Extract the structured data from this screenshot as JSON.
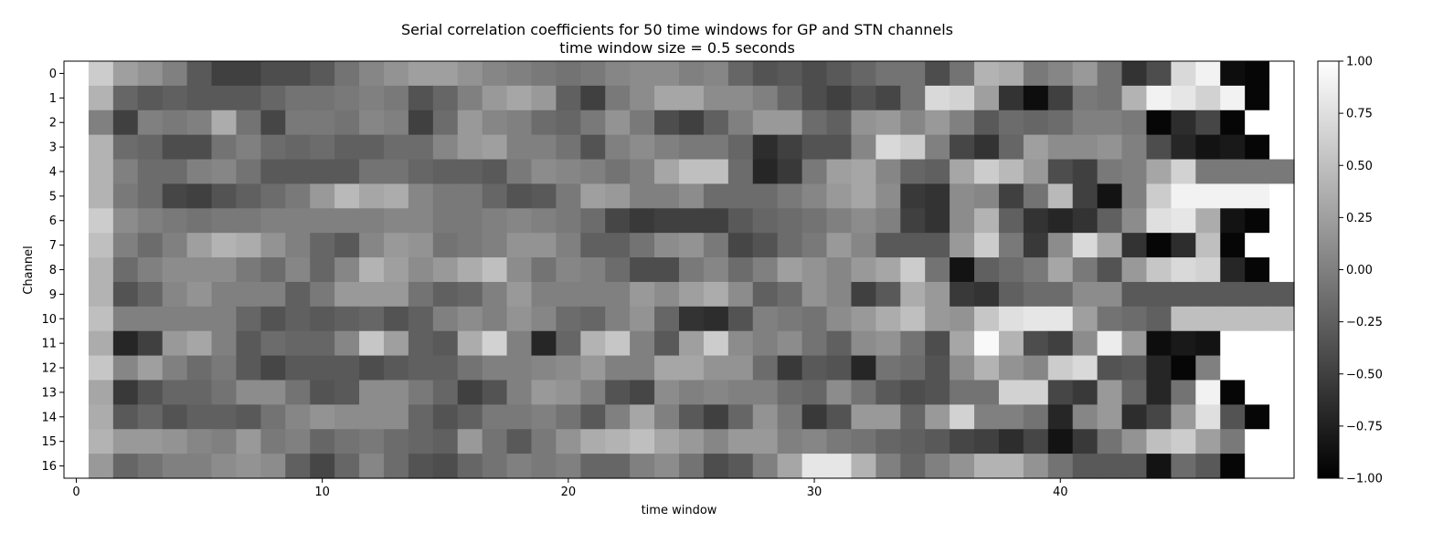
{
  "chart_data": {
    "type": "heatmap",
    "title": "Serial correlation coefficients for 50 time windows for GP and STN channels",
    "subtitle": "time window size = 0.5 seconds",
    "xlabel": "time window",
    "ylabel": "Channel",
    "colormap": "gray",
    "colormap_colors": [
      "#000000",
      "#ffffff"
    ],
    "x_range": [
      -0.5,
      49.5
    ],
    "x_ticks": [
      0,
      10,
      20,
      30,
      40
    ],
    "y_ticks": [
      0,
      1,
      2,
      3,
      4,
      5,
      6,
      7,
      8,
      9,
      10,
      11,
      12,
      13,
      14,
      15,
      16
    ],
    "color_range": [
      -1.0,
      1.0
    ],
    "colorbar_ticks": [
      "1.00",
      "0.75",
      "0.50",
      "0.25",
      "0.00",
      "−0.25",
      "−0.50",
      "−0.75",
      "−1.00"
    ],
    "channels": [
      0,
      1,
      2,
      3,
      4,
      5,
      6,
      7,
      8,
      9,
      10,
      11,
      12,
      13,
      14,
      15,
      16
    ],
    "values": [
      [
        1.0,
        0.6,
        0.25,
        0.15,
        0.0,
        -0.3,
        -0.5,
        -0.5,
        -0.4,
        -0.4,
        -0.3,
        -0.1,
        0.05,
        0.15,
        0.25,
        0.25,
        0.15,
        0.05,
        0.0,
        -0.05,
        -0.1,
        -0.05,
        0.05,
        0.1,
        0.1,
        0.0,
        0.05,
        -0.2,
        -0.35,
        -0.3,
        -0.4,
        -0.3,
        -0.2,
        -0.1,
        -0.1,
        -0.4,
        -0.1,
        0.4,
        0.35,
        -0.05,
        0.05,
        0.2,
        -0.1,
        -0.6,
        -0.4,
        0.7,
        0.9,
        -0.9,
        -0.95,
        1.0
      ],
      [
        1.0,
        0.4,
        -0.2,
        -0.3,
        -0.25,
        -0.3,
        -0.3,
        -0.3,
        -0.2,
        -0.1,
        -0.1,
        -0.05,
        0.0,
        -0.05,
        -0.35,
        -0.2,
        0.0,
        0.2,
        0.3,
        0.2,
        -0.25,
        -0.5,
        -0.05,
        0.1,
        0.3,
        0.3,
        0.1,
        0.1,
        0.0,
        -0.2,
        -0.4,
        -0.5,
        -0.35,
        -0.45,
        -0.1,
        0.7,
        0.65,
        0.25,
        -0.6,
        -0.9,
        -0.5,
        -0.05,
        -0.1,
        0.4,
        0.9,
        0.8,
        0.65,
        0.9,
        -0.95,
        1.0
      ],
      [
        1.0,
        0.0,
        -0.5,
        0.0,
        -0.05,
        0.0,
        0.35,
        -0.1,
        -0.45,
        -0.05,
        -0.05,
        -0.1,
        0.05,
        0.0,
        -0.5,
        -0.15,
        0.2,
        0.05,
        0.0,
        -0.15,
        -0.2,
        -0.05,
        0.15,
        -0.05,
        -0.4,
        -0.5,
        -0.25,
        0.0,
        0.2,
        0.2,
        -0.15,
        -0.25,
        0.15,
        0.2,
        0.05,
        0.2,
        0.0,
        -0.3,
        -0.15,
        -0.2,
        -0.15,
        0.0,
        0.0,
        -0.05,
        -0.95,
        -0.65,
        -0.45,
        -0.95,
        1.0,
        1.0
      ],
      [
        1.0,
        0.4,
        -0.15,
        -0.2,
        -0.4,
        -0.4,
        -0.1,
        0.0,
        -0.15,
        -0.2,
        -0.15,
        -0.25,
        -0.25,
        -0.15,
        -0.15,
        0.05,
        0.2,
        0.25,
        0.0,
        0.0,
        -0.1,
        -0.35,
        0.0,
        0.1,
        0.0,
        -0.05,
        -0.05,
        -0.2,
        -0.65,
        -0.5,
        -0.35,
        -0.35,
        0.05,
        0.7,
        0.6,
        0.0,
        -0.45,
        -0.6,
        -0.2,
        0.25,
        0.1,
        0.1,
        0.15,
        0.0,
        -0.4,
        -0.7,
        -0.85,
        -0.8,
        -0.95,
        1.0
      ],
      [
        1.0,
        0.4,
        0.0,
        -0.15,
        -0.15,
        0.0,
        0.05,
        -0.1,
        -0.3,
        -0.3,
        -0.3,
        -0.3,
        -0.1,
        -0.1,
        -0.2,
        -0.25,
        -0.25,
        -0.3,
        -0.05,
        0.1,
        0.05,
        0.0,
        -0.1,
        0.0,
        0.3,
        0.5,
        0.5,
        -0.15,
        -0.7,
        -0.55,
        -0.05,
        0.25,
        0.3,
        0.05,
        -0.2,
        -0.25,
        0.3,
        0.6,
        0.45,
        0.2,
        -0.4,
        -0.5,
        -0.05,
        0.0,
        0.3,
        0.65,
        -0.05,
        -0.05,
        -0.05,
        -0.05
      ],
      [
        1.0,
        0.4,
        -0.05,
        -0.15,
        -0.45,
        -0.5,
        -0.35,
        -0.25,
        -0.15,
        -0.05,
        0.2,
        0.45,
        0.3,
        0.35,
        0.05,
        -0.05,
        -0.05,
        -0.2,
        -0.35,
        -0.3,
        -0.05,
        0.25,
        0.2,
        0.0,
        0.0,
        0.1,
        -0.15,
        -0.15,
        -0.15,
        -0.05,
        0.05,
        0.2,
        0.3,
        0.1,
        -0.55,
        -0.6,
        0.1,
        0.05,
        -0.5,
        -0.1,
        0.45,
        -0.5,
        -0.85,
        0.0,
        0.6,
        0.9,
        0.9,
        0.9,
        0.9,
        1.0
      ],
      [
        1.0,
        0.6,
        0.1,
        0.0,
        -0.05,
        -0.1,
        -0.05,
        -0.05,
        0.0,
        0.0,
        0.0,
        0.0,
        0.0,
        0.05,
        0.05,
        -0.05,
        -0.05,
        0.0,
        0.05,
        0.0,
        -0.05,
        -0.15,
        -0.45,
        -0.55,
        -0.5,
        -0.5,
        -0.5,
        -0.3,
        -0.2,
        -0.15,
        -0.1,
        0.0,
        0.1,
        0.0,
        -0.5,
        -0.6,
        0.1,
        0.4,
        -0.25,
        -0.6,
        -0.7,
        -0.6,
        -0.25,
        0.1,
        0.75,
        0.8,
        0.35,
        -0.85,
        -0.95,
        1.0
      ],
      [
        1.0,
        0.5,
        0.0,
        -0.15,
        0.0,
        0.25,
        0.4,
        0.35,
        0.15,
        0.0,
        -0.2,
        -0.3,
        0.05,
        0.2,
        0.15,
        -0.1,
        -0.05,
        0.0,
        0.15,
        0.15,
        0.0,
        -0.25,
        -0.25,
        -0.1,
        0.1,
        0.15,
        -0.05,
        -0.45,
        -0.35,
        -0.15,
        -0.05,
        0.2,
        0.05,
        -0.3,
        -0.3,
        -0.3,
        0.2,
        0.6,
        -0.05,
        -0.55,
        0.1,
        0.7,
        0.3,
        -0.6,
        -0.95,
        -0.65,
        0.5,
        -0.95,
        1.0,
        1.0
      ],
      [
        1.0,
        0.4,
        -0.15,
        0.0,
        0.1,
        0.1,
        0.1,
        -0.05,
        -0.15,
        0.05,
        -0.2,
        0.05,
        0.4,
        0.25,
        0.1,
        0.2,
        0.35,
        0.5,
        0.1,
        -0.1,
        0.05,
        0.0,
        -0.15,
        -0.4,
        -0.4,
        -0.05,
        0.05,
        -0.15,
        0.0,
        0.25,
        0.15,
        0.05,
        0.2,
        0.3,
        0.6,
        -0.1,
        -0.85,
        -0.25,
        -0.15,
        -0.05,
        0.3,
        -0.05,
        -0.35,
        0.2,
        0.55,
        0.7,
        0.65,
        -0.7,
        -0.95,
        1.0
      ],
      [
        1.0,
        0.4,
        -0.35,
        -0.2,
        0.05,
        0.15,
        0.0,
        0.0,
        0.0,
        -0.25,
        -0.05,
        0.2,
        0.2,
        0.2,
        -0.1,
        -0.25,
        -0.2,
        0.0,
        0.2,
        0.0,
        0.0,
        0.0,
        0.0,
        0.2,
        0.1,
        0.25,
        0.35,
        0.1,
        -0.25,
        -0.15,
        0.15,
        0.05,
        -0.5,
        -0.3,
        0.35,
        0.2,
        -0.55,
        -0.6,
        -0.25,
        -0.15,
        -0.15,
        0.1,
        0.1,
        -0.3,
        -0.3,
        -0.3,
        -0.3,
        -0.3,
        -0.3,
        -0.3
      ],
      [
        1.0,
        0.5,
        0.0,
        0.0,
        0.0,
        0.0,
        0.0,
        -0.2,
        -0.35,
        -0.25,
        -0.3,
        -0.25,
        -0.2,
        -0.35,
        -0.25,
        0.0,
        0.1,
        0.0,
        0.15,
        0.05,
        -0.15,
        -0.2,
        0.0,
        0.15,
        -0.2,
        -0.6,
        -0.65,
        -0.35,
        0.0,
        -0.05,
        -0.1,
        0.1,
        0.2,
        0.35,
        0.5,
        0.2,
        0.15,
        0.55,
        0.75,
        0.8,
        0.8,
        0.25,
        -0.1,
        -0.15,
        -0.25,
        0.5,
        0.5,
        0.5,
        0.5,
        0.5
      ],
      [
        1.0,
        0.35,
        -0.7,
        -0.5,
        0.2,
        0.3,
        0.0,
        -0.3,
        -0.15,
        -0.2,
        -0.2,
        0.05,
        0.55,
        0.25,
        -0.25,
        -0.3,
        0.35,
        0.65,
        0.0,
        -0.7,
        -0.2,
        0.4,
        0.55,
        0.0,
        -0.3,
        0.25,
        0.6,
        0.1,
        0.0,
        0.1,
        -0.1,
        -0.25,
        0.1,
        0.15,
        -0.1,
        -0.4,
        0.3,
        0.95,
        0.4,
        -0.4,
        -0.5,
        0.1,
        0.85,
        0.2,
        -0.9,
        -0.8,
        -0.85,
        1.0,
        1.0,
        1.0
      ],
      [
        1.0,
        0.55,
        0.05,
        0.25,
        0.0,
        -0.15,
        -0.05,
        -0.3,
        -0.45,
        -0.3,
        -0.3,
        -0.3,
        -0.4,
        -0.3,
        -0.25,
        -0.25,
        -0.1,
        0.0,
        0.0,
        0.05,
        0.1,
        0.2,
        0.0,
        0.0,
        0.3,
        0.3,
        0.15,
        0.15,
        -0.15,
        -0.55,
        -0.3,
        -0.35,
        -0.7,
        -0.1,
        -0.15,
        -0.35,
        0.1,
        0.4,
        0.15,
        0.05,
        0.6,
        0.7,
        -0.35,
        -0.3,
        -0.7,
        -0.95,
        0.0,
        1.0,
        1.0,
        1.0
      ],
      [
        1.0,
        0.3,
        -0.55,
        -0.35,
        -0.2,
        -0.2,
        -0.1,
        0.1,
        0.1,
        -0.1,
        -0.35,
        -0.3,
        0.1,
        0.1,
        -0.05,
        -0.2,
        -0.5,
        -0.35,
        0.0,
        0.2,
        0.15,
        0.0,
        -0.35,
        -0.45,
        0.1,
        0.0,
        0.05,
        0.0,
        0.0,
        -0.15,
        -0.2,
        0.1,
        -0.1,
        -0.3,
        -0.4,
        -0.35,
        -0.1,
        -0.1,
        0.65,
        0.65,
        -0.45,
        -0.55,
        0.2,
        -0.2,
        -0.7,
        -0.1,
        0.9,
        -0.95,
        1.0,
        1.0
      ],
      [
        1.0,
        0.35,
        -0.3,
        -0.2,
        -0.35,
        -0.25,
        -0.25,
        -0.3,
        -0.1,
        0.05,
        0.15,
        0.1,
        0.1,
        0.1,
        -0.2,
        -0.35,
        -0.25,
        -0.05,
        -0.05,
        0.0,
        -0.1,
        -0.3,
        0.0,
        0.3,
        0.0,
        -0.3,
        -0.5,
        -0.2,
        0.15,
        -0.05,
        -0.55,
        -0.35,
        0.2,
        0.2,
        -0.2,
        0.2,
        0.65,
        0.0,
        0.0,
        -0.1,
        -0.7,
        0.05,
        0.2,
        -0.65,
        -0.45,
        0.2,
        0.75,
        -0.35,
        -0.95,
        1.0
      ],
      [
        1.0,
        0.4,
        0.2,
        0.2,
        0.15,
        0.05,
        0.0,
        0.2,
        -0.05,
        0.0,
        -0.2,
        -0.1,
        -0.05,
        -0.15,
        -0.2,
        -0.25,
        0.2,
        -0.1,
        -0.3,
        -0.05,
        0.15,
        0.35,
        0.4,
        0.5,
        0.3,
        0.2,
        0.05,
        0.2,
        0.2,
        0.0,
        0.05,
        -0.05,
        -0.1,
        -0.2,
        -0.25,
        -0.3,
        -0.45,
        -0.5,
        -0.65,
        -0.45,
        -0.85,
        -0.55,
        -0.1,
        0.15,
        0.5,
        0.6,
        0.25,
        -0.05,
        1.0,
        1.0
      ],
      [
        1.0,
        0.2,
        -0.2,
        -0.1,
        0.0,
        0.0,
        0.1,
        0.15,
        0.1,
        -0.25,
        -0.45,
        -0.2,
        0.05,
        -0.15,
        -0.35,
        -0.4,
        -0.2,
        -0.1,
        0.0,
        -0.05,
        0.0,
        -0.2,
        -0.2,
        0.0,
        0.1,
        -0.1,
        -0.4,
        -0.3,
        0.0,
        0.3,
        0.8,
        0.8,
        0.4,
        0.0,
        -0.2,
        0.0,
        0.15,
        0.4,
        0.4,
        0.15,
        -0.1,
        -0.3,
        -0.3,
        -0.3,
        -0.85,
        -0.15,
        -0.3,
        -0.95,
        1.0,
        1.0
      ]
    ]
  }
}
